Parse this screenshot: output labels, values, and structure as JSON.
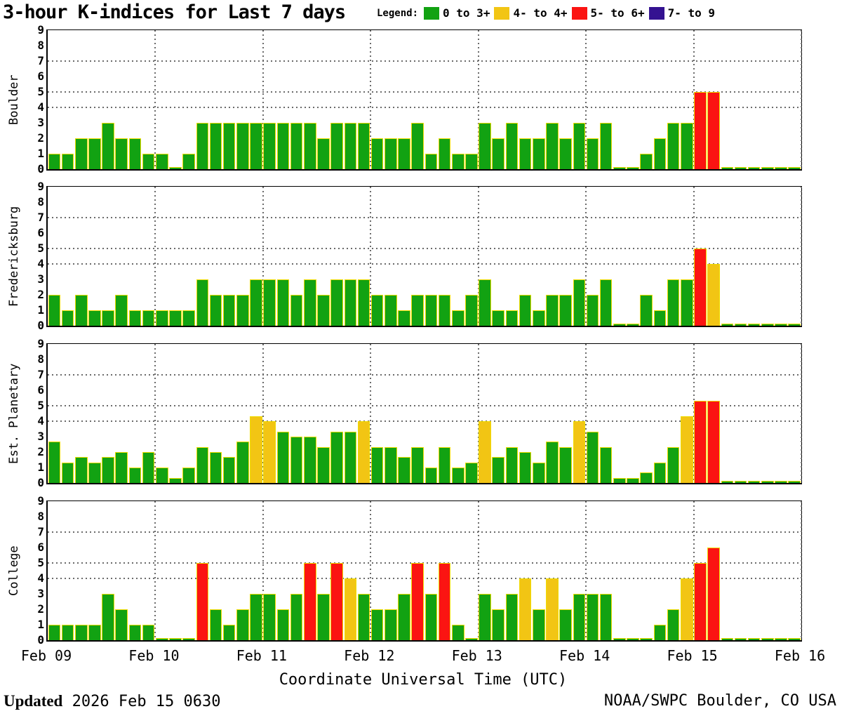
{
  "title": "3-hour K-indices for Last 7 days",
  "legend": {
    "label": "Legend:",
    "items": [
      {
        "label": "0 to 3+",
        "color": "#12a212"
      },
      {
        "label": "4- to 4+",
        "color": "#f2c514"
      },
      {
        "label": "5- to 6+",
        "color": "#fb1412"
      },
      {
        "label": "7- to 9",
        "color": "#341291"
      }
    ]
  },
  "footer": {
    "updated_label": "Updated",
    "updated_value": " 2026 Feb 15 0630",
    "credit": "NOAA/SWPC Boulder, CO USA"
  },
  "chart_data": {
    "type": "bar",
    "title": "3-hour K-indices for Last 7 days",
    "xlabel": "Coordinate Universal Time (UTC)",
    "x": {
      "days": [
        "Feb 09",
        "Feb 10",
        "Feb 11",
        "Feb 12",
        "Feb 13",
        "Feb 14",
        "Feb 15",
        "Feb 16"
      ],
      "bars_per_day": 8,
      "interval_hours": 3
    },
    "y": {
      "min": 0,
      "max": 9,
      "ticks": [
        0,
        1,
        2,
        3,
        4,
        5,
        6,
        7,
        8,
        9
      ],
      "dotted_gridlines": [
        4,
        5,
        7
      ]
    },
    "color_rules": {
      "green_max": 3.33,
      "yellow_max": 4.33,
      "red_max": 6.33,
      "purple_max": 9,
      "bar_outline": "#f0dc00"
    },
    "stations": [
      {
        "name": "Boulder",
        "values_by_day": [
          [
            1,
            1,
            2,
            2,
            3,
            2,
            2,
            1
          ],
          [
            1,
            0,
            1,
            3,
            3,
            3,
            3,
            3
          ],
          [
            3,
            3,
            3,
            3,
            2,
            3,
            3,
            3
          ],
          [
            2,
            2,
            2,
            3,
            1,
            2,
            1,
            1
          ],
          [
            3,
            2,
            3,
            2,
            2,
            3,
            2,
            3
          ],
          [
            2,
            3,
            0,
            0,
            1,
            2,
            3,
            3
          ],
          [
            5,
            5,
            0,
            0,
            0,
            0,
            0,
            0
          ]
        ]
      },
      {
        "name": "Fredericksburg",
        "values_by_day": [
          [
            2,
            1,
            2,
            1,
            1,
            2,
            1,
            1
          ],
          [
            1,
            1,
            1,
            3,
            2,
            2,
            2,
            3
          ],
          [
            3,
            3,
            2,
            3,
            2,
            3,
            3,
            3
          ],
          [
            2,
            2,
            1,
            2,
            2,
            2,
            1,
            2
          ],
          [
            3,
            1,
            1,
            2,
            1,
            2,
            2,
            3
          ],
          [
            2,
            3,
            0,
            0,
            2,
            1,
            3,
            3
          ],
          [
            5,
            4,
            0,
            0,
            0,
            0,
            0,
            0
          ]
        ]
      },
      {
        "name": "Est. Planetary",
        "values_by_day": [
          [
            2.67,
            1.33,
            1.67,
            1.33,
            1.67,
            2,
            1,
            2
          ],
          [
            1,
            0.33,
            1,
            2.33,
            2,
            1.67,
            2.67,
            4.33
          ],
          [
            4,
            3.33,
            3,
            3,
            2.33,
            3.33,
            3.33,
            4
          ],
          [
            2.33,
            2.33,
            1.67,
            2.33,
            1,
            2.33,
            1,
            1.33
          ],
          [
            4,
            1.67,
            2.33,
            2,
            1.33,
            2.67,
            2.33,
            4
          ],
          [
            3.33,
            2.33,
            0.33,
            0.33,
            0.67,
            1.33,
            2.33,
            4.33
          ],
          [
            5.33,
            5.33,
            0,
            0,
            0,
            0,
            0,
            0
          ]
        ]
      },
      {
        "name": "College",
        "values_by_day": [
          [
            1,
            1,
            1,
            1,
            3,
            2,
            1,
            1
          ],
          [
            0,
            0,
            0,
            5,
            2,
            1,
            2,
            3
          ],
          [
            3,
            2,
            3,
            5,
            3,
            5,
            4,
            3
          ],
          [
            2,
            2,
            3,
            5,
            3,
            5,
            1,
            0
          ],
          [
            3,
            2,
            3,
            4,
            2,
            4,
            2,
            3
          ],
          [
            3,
            3,
            0,
            0,
            0,
            1,
            2,
            4
          ],
          [
            5,
            6,
            0,
            0,
            0,
            0,
            0,
            0
          ]
        ]
      }
    ]
  }
}
